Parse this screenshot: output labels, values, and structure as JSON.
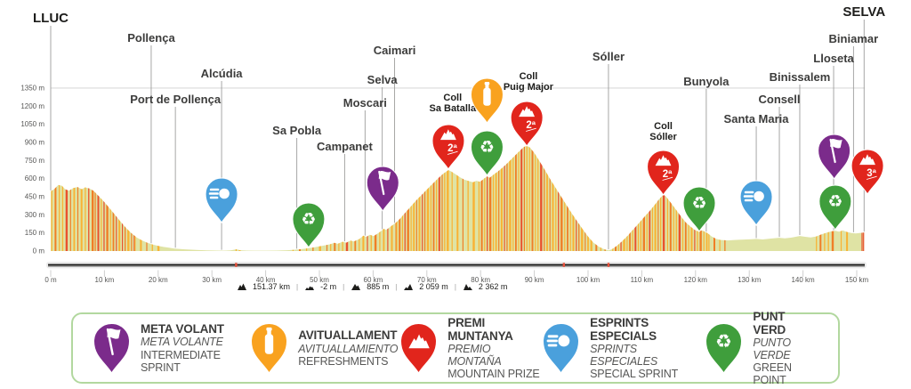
{
  "chart_data": {
    "type": "area",
    "title": "LLUC - SELVA stage elevation profile",
    "x_unit": "km",
    "y_unit": "m",
    "xlim": [
      0,
      151.37
    ],
    "ylim": [
      0,
      1350
    ],
    "y_tick_labels": [
      "0 m",
      "150 m",
      "300 m",
      "450 m",
      "600 m",
      "750 m",
      "900 m",
      "1050 m",
      "1200 m",
      "1350 m"
    ],
    "y_tick_values": [
      0,
      150,
      300,
      450,
      600,
      750,
      900,
      1050,
      1200,
      1350
    ],
    "x_tick_labels": [
      "0 m",
      "10 km",
      "20 km",
      "30 km",
      "40 km",
      "50 km",
      "60 km",
      "70 km",
      "80 km",
      "90 km",
      "100 km",
      "110 km",
      "120 km",
      "130 km",
      "140 km",
      "150 km"
    ],
    "x_tick_values": [
      0,
      10,
      20,
      30,
      40,
      50,
      60,
      70,
      80,
      90,
      100,
      110,
      120,
      130,
      140,
      150
    ],
    "profile_points": [
      [
        0,
        495
      ],
      [
        0.7,
        515
      ],
      [
        1.4,
        548
      ],
      [
        2.1,
        540
      ],
      [
        2.7,
        512
      ],
      [
        3.4,
        500
      ],
      [
        4.2,
        522
      ],
      [
        5,
        530
      ],
      [
        5.8,
        512
      ],
      [
        6.4,
        527
      ],
      [
        7.2,
        518
      ],
      [
        8,
        498
      ],
      [
        9,
        452
      ],
      [
        10,
        405
      ],
      [
        11,
        352
      ],
      [
        12,
        298
      ],
      [
        13,
        243
      ],
      [
        14,
        192
      ],
      [
        15,
        148
      ],
      [
        16,
        112
      ],
      [
        17,
        88
      ],
      [
        18,
        68
      ],
      [
        19,
        53
      ],
      [
        20,
        42
      ],
      [
        21,
        34
      ],
      [
        22,
        27
      ],
      [
        23,
        21
      ],
      [
        25,
        14
      ],
      [
        27,
        9
      ],
      [
        29,
        6
      ],
      [
        31,
        4
      ],
      [
        32,
        3
      ],
      [
        33.5,
        5
      ],
      [
        34.6,
        15
      ],
      [
        35.2,
        7
      ],
      [
        36.5,
        4
      ],
      [
        38,
        3
      ],
      [
        40,
        3
      ],
      [
        42,
        4
      ],
      [
        44,
        7
      ],
      [
        45.8,
        12
      ],
      [
        47,
        18
      ],
      [
        48,
        24
      ],
      [
        49,
        30
      ],
      [
        50,
        38
      ],
      [
        51,
        47
      ],
      [
        52,
        56
      ],
      [
        52.8,
        68
      ],
      [
        53.4,
        60
      ],
      [
        54.3,
        77
      ],
      [
        55,
        69
      ],
      [
        55.8,
        87
      ],
      [
        56.4,
        79
      ],
      [
        57.4,
        99
      ],
      [
        58.2,
        127
      ],
      [
        58.7,
        117
      ],
      [
        59.4,
        134
      ],
      [
        60.1,
        124
      ],
      [
        60.9,
        147
      ],
      [
        61.5,
        166
      ],
      [
        62,
        184
      ],
      [
        62.4,
        174
      ],
      [
        63,
        194
      ],
      [
        63.6,
        214
      ],
      [
        64.2,
        233
      ],
      [
        65,
        268
      ],
      [
        66,
        318
      ],
      [
        67,
        368
      ],
      [
        68,
        418
      ],
      [
        69,
        464
      ],
      [
        70,
        509
      ],
      [
        71,
        553
      ],
      [
        72,
        598
      ],
      [
        73,
        639
      ],
      [
        74,
        670
      ],
      [
        74.5,
        660
      ],
      [
        75.4,
        634
      ],
      [
        76.2,
        610
      ],
      [
        77,
        591
      ],
      [
        78,
        577
      ],
      [
        78.6,
        569
      ],
      [
        79.2,
        582
      ],
      [
        79.9,
        574
      ],
      [
        80.6,
        598
      ],
      [
        81.2,
        618
      ],
      [
        81.7,
        608
      ],
      [
        82.4,
        633
      ],
      [
        83.2,
        658
      ],
      [
        84,
        688
      ],
      [
        85,
        728
      ],
      [
        86,
        772
      ],
      [
        87,
        818
      ],
      [
        88,
        860
      ],
      [
        88.6,
        874
      ],
      [
        89.2,
        856
      ],
      [
        90,
        812
      ],
      [
        91,
        742
      ],
      [
        92,
        668
      ],
      [
        93,
        592
      ],
      [
        94,
        520
      ],
      [
        95,
        450
      ],
      [
        96,
        380
      ],
      [
        97,
        310
      ],
      [
        98,
        244
      ],
      [
        99,
        180
      ],
      [
        100,
        120
      ],
      [
        101,
        70
      ],
      [
        102,
        36
      ],
      [
        103,
        15
      ],
      [
        103.8,
        6
      ],
      [
        104.4,
        14
      ],
      [
        105.4,
        44
      ],
      [
        106.4,
        84
      ],
      [
        107.4,
        128
      ],
      [
        108.4,
        178
      ],
      [
        109.4,
        228
      ],
      [
        110.4,
        278
      ],
      [
        111.4,
        328
      ],
      [
        112.4,
        382
      ],
      [
        113.2,
        428
      ],
      [
        114,
        466
      ],
      [
        114.5,
        452
      ],
      [
        115.4,
        400
      ],
      [
        116.4,
        340
      ],
      [
        117.4,
        280
      ],
      [
        118.2,
        236
      ],
      [
        119,
        205
      ],
      [
        119.8,
        176
      ],
      [
        120.6,
        160
      ],
      [
        121.2,
        171
      ],
      [
        121.7,
        160
      ],
      [
        122.3,
        146
      ],
      [
        123,
        121
      ],
      [
        123.8,
        101
      ],
      [
        124.6,
        92
      ],
      [
        126,
        88
      ],
      [
        127.5,
        92
      ],
      [
        129,
        95
      ],
      [
        130.4,
        98
      ],
      [
        131.3,
        100
      ],
      [
        132.5,
        96
      ],
      [
        134,
        103
      ],
      [
        135.6,
        110
      ],
      [
        136.6,
        105
      ],
      [
        138,
        112
      ],
      [
        139.4,
        125
      ],
      [
        140.4,
        118
      ],
      [
        141.4,
        112
      ],
      [
        142.4,
        120
      ],
      [
        143.4,
        137
      ],
      [
        144.4,
        152
      ],
      [
        145.2,
        162
      ],
      [
        146,
        168
      ],
      [
        146.7,
        161
      ],
      [
        147.4,
        170
      ],
      [
        148.2,
        158
      ],
      [
        149,
        150
      ],
      [
        149.8,
        146
      ],
      [
        150.5,
        150
      ],
      [
        151.37,
        153
      ]
    ],
    "towns": [
      {
        "name": "LLUC",
        "km": 0,
        "label_y": 25,
        "big": true
      },
      {
        "name": "Pollença",
        "km": 18.7,
        "label_y": 47,
        "big": false
      },
      {
        "name": "Port de Pollença",
        "km": 23.2,
        "label_y": 116,
        "big": false
      },
      {
        "name": "Alcúdia",
        "km": 31.8,
        "label_y": 87,
        "big": false
      },
      {
        "name": "Sa Pobla",
        "km": 45.8,
        "label_y": 151,
        "big": false
      },
      {
        "name": "Campanet",
        "km": 54.7,
        "label_y": 169,
        "big": false
      },
      {
        "name": "Moscari",
        "km": 58.5,
        "label_y": 120,
        "big": false
      },
      {
        "name": "Selva",
        "km": 61.7,
        "label_y": 94,
        "big": false
      },
      {
        "name": "Caimari",
        "km": 64,
        "label_y": 61,
        "big": false
      },
      {
        "name": "Sóller",
        "km": 103.8,
        "label_y": 68,
        "big": false
      },
      {
        "name": "Bunyola",
        "km": 122,
        "label_y": 96,
        "big": false
      },
      {
        "name": "Santa Maria",
        "km": 131.3,
        "label_y": 138,
        "big": false
      },
      {
        "name": "Consell",
        "km": 135.6,
        "label_y": 116,
        "big": false
      },
      {
        "name": "Binissalem",
        "km": 139.4,
        "label_y": 91,
        "big": false
      },
      {
        "name": "Lloseta",
        "km": 145.7,
        "label_y": 70,
        "big": false
      },
      {
        "name": "Biniamar",
        "km": 149.4,
        "label_y": 48,
        "big": false
      },
      {
        "name": "SELVA",
        "km": 151.37,
        "label_y": 18,
        "big": true
      }
    ],
    "climb_labels": [
      {
        "lines": [
          "Coll",
          "Sa Batalla"
        ],
        "km": 74.8,
        "y": 104
      },
      {
        "lines": [
          "Coll",
          "Puig Major"
        ],
        "km": 88.9,
        "y": 80
      },
      {
        "lines": [
          "Coll",
          "Sóller"
        ],
        "km": 114,
        "y": 136
      }
    ],
    "markers": [
      {
        "kind": "special-sprint",
        "icon": "comet-icon",
        "km": 31.8,
        "tip_y": 250,
        "badge": ""
      },
      {
        "kind": "green-point",
        "icon": "recycle-icon",
        "km": 48,
        "tip_y": 278,
        "badge": ""
      },
      {
        "kind": "intermediate-sprint",
        "icon": "flag-icon",
        "km": 61.8,
        "tip_y": 237,
        "badge": ""
      },
      {
        "kind": "mountain-prize",
        "icon": "mountain-icon",
        "km": 74,
        "tip_y": 190,
        "badge": "2ª"
      },
      {
        "kind": "green-point",
        "icon": "recycle-icon",
        "km": 81.2,
        "tip_y": 197,
        "badge": ""
      },
      {
        "kind": "refreshments",
        "icon": "bottle-icon",
        "km": 81.2,
        "tip_y": 138,
        "badge": ""
      },
      {
        "kind": "mountain-prize",
        "icon": "mountain-icon",
        "km": 88.6,
        "tip_y": 164,
        "badge": "2ª"
      },
      {
        "kind": "mountain-prize",
        "icon": "mountain-icon",
        "km": 114,
        "tip_y": 219,
        "badge": "2ª"
      },
      {
        "kind": "green-point",
        "icon": "recycle-icon",
        "km": 120.7,
        "tip_y": 260,
        "badge": ""
      },
      {
        "kind": "special-sprint",
        "icon": "comet-icon",
        "km": 131.3,
        "tip_y": 253,
        "badge": ""
      },
      {
        "kind": "green-point",
        "icon": "recycle-icon",
        "km": 146,
        "tip_y": 258,
        "badge": ""
      },
      {
        "kind": "intermediate-sprint",
        "icon": "flag-icon",
        "km": 145.8,
        "tip_y": 201,
        "badge": ""
      },
      {
        "kind": "mountain-prize",
        "icon": "mountain-icon",
        "km": 152,
        "tip_y": 218,
        "badge": "3ª"
      }
    ],
    "route_marks_km": [
      34.5,
      95.5,
      103.8
    ],
    "stripe_segments": [
      {
        "f": 0.1,
        "t": 8.2,
        "g": 2.6,
        "c": "ODOORD"
      },
      {
        "f": 8.2,
        "t": 15.6,
        "g": 1.8,
        "c": "DRORDO"
      },
      {
        "f": 15.6,
        "t": 20,
        "g": 5,
        "c": "OOD"
      },
      {
        "f": 34.4,
        "t": 35.2,
        "g": 2.5,
        "c": "O"
      },
      {
        "f": 45,
        "t": 52,
        "g": 6,
        "c": "OD"
      },
      {
        "f": 52,
        "t": 64.3,
        "g": 3,
        "c": "ODOOR"
      },
      {
        "f": 64.3,
        "t": 74.2,
        "g": 1.6,
        "c": "ODORDO"
      },
      {
        "f": 74.6,
        "t": 79.4,
        "g": 4.5,
        "c": "OOD"
      },
      {
        "f": 79.6,
        "t": 88.7,
        "g": 1.6,
        "c": "ODORDO"
      },
      {
        "f": 89,
        "t": 100.6,
        "g": 1.7,
        "c": "ODOORD"
      },
      {
        "f": 100.6,
        "t": 103.7,
        "g": 3.5,
        "c": "OD"
      },
      {
        "f": 104.5,
        "t": 114.2,
        "g": 1.6,
        "c": "ODORO"
      },
      {
        "f": 114.7,
        "t": 122.4,
        "g": 1.8,
        "c": "ODOOR"
      },
      {
        "f": 122.4,
        "t": 125.6,
        "g": 4.5,
        "c": "OD"
      },
      {
        "f": 142.4,
        "t": 146.2,
        "g": 3,
        "c": "ODO"
      },
      {
        "f": 147,
        "t": 148.4,
        "g": 5,
        "c": "O"
      },
      {
        "f": 150.9,
        "t": 151.37,
        "g": 0.5,
        "c": "R"
      }
    ],
    "stats": [
      {
        "icon": "route-distance-icon",
        "value": "151.37 km"
      },
      {
        "icon": "min-altitude-icon",
        "value": "-2 m"
      },
      {
        "icon": "max-altitude-icon",
        "value": "885 m"
      },
      {
        "icon": "elevation-gain-icon",
        "value": "2 059 m"
      },
      {
        "icon": "elevation-loss-icon",
        "value": "2 362 m"
      }
    ]
  },
  "legend": {
    "items": [
      {
        "kind": "intermediate-sprint",
        "icon": "flag-icon",
        "color": "#7b2b8b",
        "line1": "META VOLANT",
        "line2": "META VOLANTE",
        "line3": "INTERMEDIATE SPRINT"
      },
      {
        "kind": "refreshments",
        "icon": "bottle-icon",
        "color": "#f9a21f",
        "line1": "AVITUALLAMENT",
        "line2": "AVITUALLAMIENTO",
        "line3": "REFRESHMENTS"
      },
      {
        "kind": "mountain-prize",
        "icon": "mountain-icon",
        "color": "#e1251c",
        "line1": "PREMI MUNTANYA",
        "line2": "PREMIO MONTAÑA",
        "line3": "MOUNTAIN PRIZE"
      },
      {
        "kind": "special-sprint",
        "icon": "comet-icon",
        "color": "#4aa0dc",
        "line1": "ESPRINTS ESPECIALS",
        "line2": "SPRINTS ESPECIALES",
        "line3": "SPECIAL SPRINT"
      },
      {
        "kind": "green-point",
        "icon": "recycle-icon",
        "color": "#3f9e3c",
        "line1": "PUNT VERD",
        "line2": "PUNTO VERDE",
        "line3": "GREEN POINT"
      }
    ]
  },
  "colors": {
    "purple": "#7b2b8b",
    "orange": "#f9a21f",
    "red": "#e1251c",
    "blue": "#4aa0dc",
    "green": "#3f9e3c",
    "profile_base": "#dfe3a4",
    "stripe_orange": "#f9b233",
    "stripe_deep": "#f07e26",
    "stripe_red": "#e9512e",
    "town_line": "#9d9d9c",
    "text_dark": "#3c3c3b",
    "text_black": "#1d1d1b",
    "text_gray": "#575756",
    "axis_band": "#ececec",
    "axis_line": "#1d1d1b",
    "gridline": "#cfcfcf",
    "legend_border": "#b2d89f",
    "route_mark": "#e8503a"
  }
}
